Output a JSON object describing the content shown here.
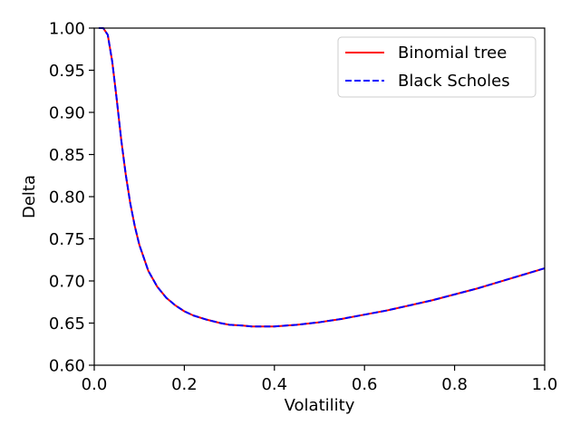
{
  "chart_data": {
    "type": "line",
    "title": "",
    "xlabel": "Volatility",
    "ylabel": "Delta",
    "xlim": [
      0.0,
      1.0
    ],
    "ylim": [
      0.6,
      1.0
    ],
    "x_ticks": [
      "0.0",
      "0.2",
      "0.4",
      "0.6",
      "0.8",
      "1.0"
    ],
    "y_ticks": [
      "0.60",
      "0.65",
      "0.70",
      "0.75",
      "0.80",
      "0.85",
      "0.90",
      "0.95",
      "1.00"
    ],
    "grid": false,
    "legend_position": "top-right",
    "x": [
      0.01,
      0.02,
      0.03,
      0.04,
      0.05,
      0.06,
      0.07,
      0.08,
      0.09,
      0.1,
      0.12,
      0.14,
      0.16,
      0.18,
      0.2,
      0.22,
      0.25,
      0.28,
      0.3,
      0.33,
      0.35,
      0.38,
      0.4,
      0.45,
      0.5,
      0.55,
      0.6,
      0.65,
      0.7,
      0.75,
      0.8,
      0.85,
      0.9,
      0.95,
      1.0
    ],
    "series": [
      {
        "name": "Binomial tree",
        "color": "#ff0000",
        "dash": "solid",
        "values": [
          1.0,
          1.0,
          0.992,
          0.96,
          0.915,
          0.867,
          0.826,
          0.792,
          0.765,
          0.743,
          0.712,
          0.693,
          0.68,
          0.671,
          0.664,
          0.659,
          0.654,
          0.65,
          0.648,
          0.647,
          0.646,
          0.646,
          0.646,
          0.648,
          0.651,
          0.655,
          0.66,
          0.665,
          0.671,
          0.677,
          0.684,
          0.691,
          0.699,
          0.707,
          0.715
        ]
      },
      {
        "name": "Black Scholes",
        "color": "#0000ff",
        "dash": "dashed",
        "values": [
          1.0,
          1.0,
          0.992,
          0.96,
          0.915,
          0.867,
          0.826,
          0.792,
          0.765,
          0.743,
          0.712,
          0.693,
          0.68,
          0.671,
          0.664,
          0.659,
          0.654,
          0.65,
          0.648,
          0.647,
          0.646,
          0.646,
          0.646,
          0.648,
          0.651,
          0.655,
          0.66,
          0.665,
          0.671,
          0.677,
          0.684,
          0.691,
          0.699,
          0.707,
          0.715
        ]
      }
    ]
  }
}
